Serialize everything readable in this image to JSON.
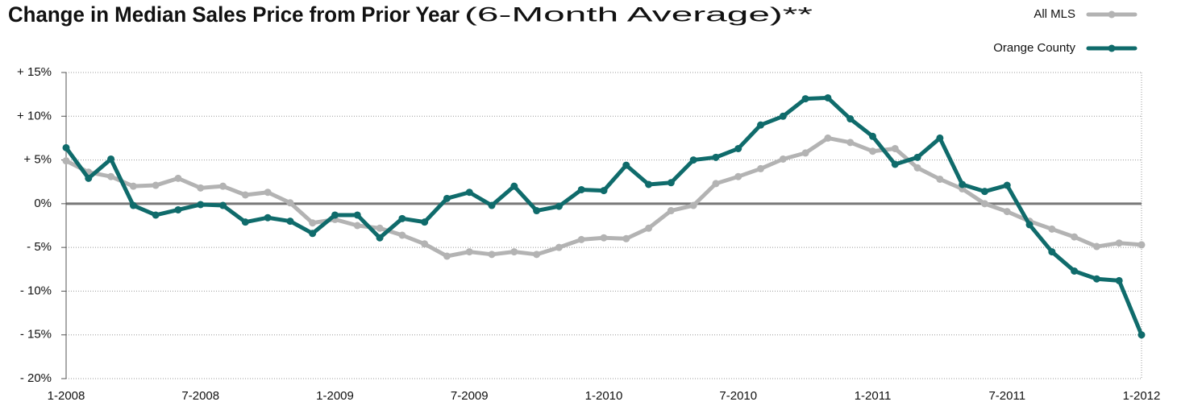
{
  "chart_data": {
    "type": "line",
    "title": "Change in Median Sales Price from Prior Year",
    "subtitle": "(6-Month Average)**",
    "categories": [
      "1-2008",
      null,
      null,
      null,
      null,
      null,
      "7-2008",
      null,
      null,
      null,
      null,
      null,
      "1-2009",
      null,
      null,
      null,
      null,
      null,
      "7-2009",
      null,
      null,
      null,
      null,
      null,
      "1-2010",
      null,
      null,
      null,
      null,
      null,
      "7-2010",
      null,
      null,
      null,
      null,
      null,
      "1-2011",
      null,
      null,
      null,
      null,
      null,
      "7-2011",
      null,
      null,
      null,
      null,
      null,
      "1-2012"
    ],
    "series": [
      {
        "name": "All MLS",
        "color": "#b3b3b3",
        "values": [
          4.9,
          3.6,
          3.1,
          2.0,
          2.1,
          2.9,
          1.8,
          2.0,
          1.0,
          1.3,
          0.1,
          -2.2,
          -1.8,
          -2.5,
          -2.8,
          -3.6,
          -4.6,
          -6.0,
          -5.5,
          -5.8,
          -5.5,
          -5.8,
          -5.0,
          -4.1,
          -3.9,
          -4.0,
          -2.8,
          -0.8,
          -0.2,
          2.3,
          3.1,
          4.0,
          5.1,
          5.8,
          7.5,
          7.0,
          6.0,
          6.3,
          4.1,
          2.8,
          1.7,
          0.0,
          -0.9,
          -2.0,
          -2.9,
          -3.8,
          -4.9,
          -4.5,
          -4.7
        ]
      },
      {
        "name": "Orange County",
        "color": "#0f6b6b",
        "values": [
          6.4,
          2.9,
          5.1,
          -0.2,
          -1.3,
          -0.7,
          -0.1,
          -0.2,
          -2.1,
          -1.6,
          -2.0,
          -3.4,
          -1.3,
          -1.3,
          -3.9,
          -1.7,
          -2.1,
          0.6,
          1.3,
          -0.2,
          2.0,
          -0.8,
          -0.3,
          1.6,
          1.5,
          4.4,
          2.2,
          2.4,
          5.0,
          5.3,
          6.3,
          9.0,
          10.0,
          12.0,
          12.1,
          9.7,
          7.7,
          4.5,
          5.3,
          7.5,
          2.2,
          1.4,
          2.1,
          -2.4,
          -5.5,
          -7.7,
          -8.6,
          -8.8,
          -15.0
        ]
      }
    ],
    "ylim": [
      -20,
      15
    ],
    "yticks": [
      {
        "value": -20,
        "label": "- 20%"
      },
      {
        "value": -15,
        "label": "- 15%"
      },
      {
        "value": -10,
        "label": "- 10%"
      },
      {
        "value": -5,
        "label": "- 5%"
      },
      {
        "value": 0,
        "label": "0%"
      },
      {
        "value": 5,
        "label": "+ 5%"
      },
      {
        "value": 10,
        "label": "+ 10%"
      },
      {
        "value": 15,
        "label": "+ 15%"
      }
    ],
    "grid": true,
    "legend": "top-right"
  }
}
